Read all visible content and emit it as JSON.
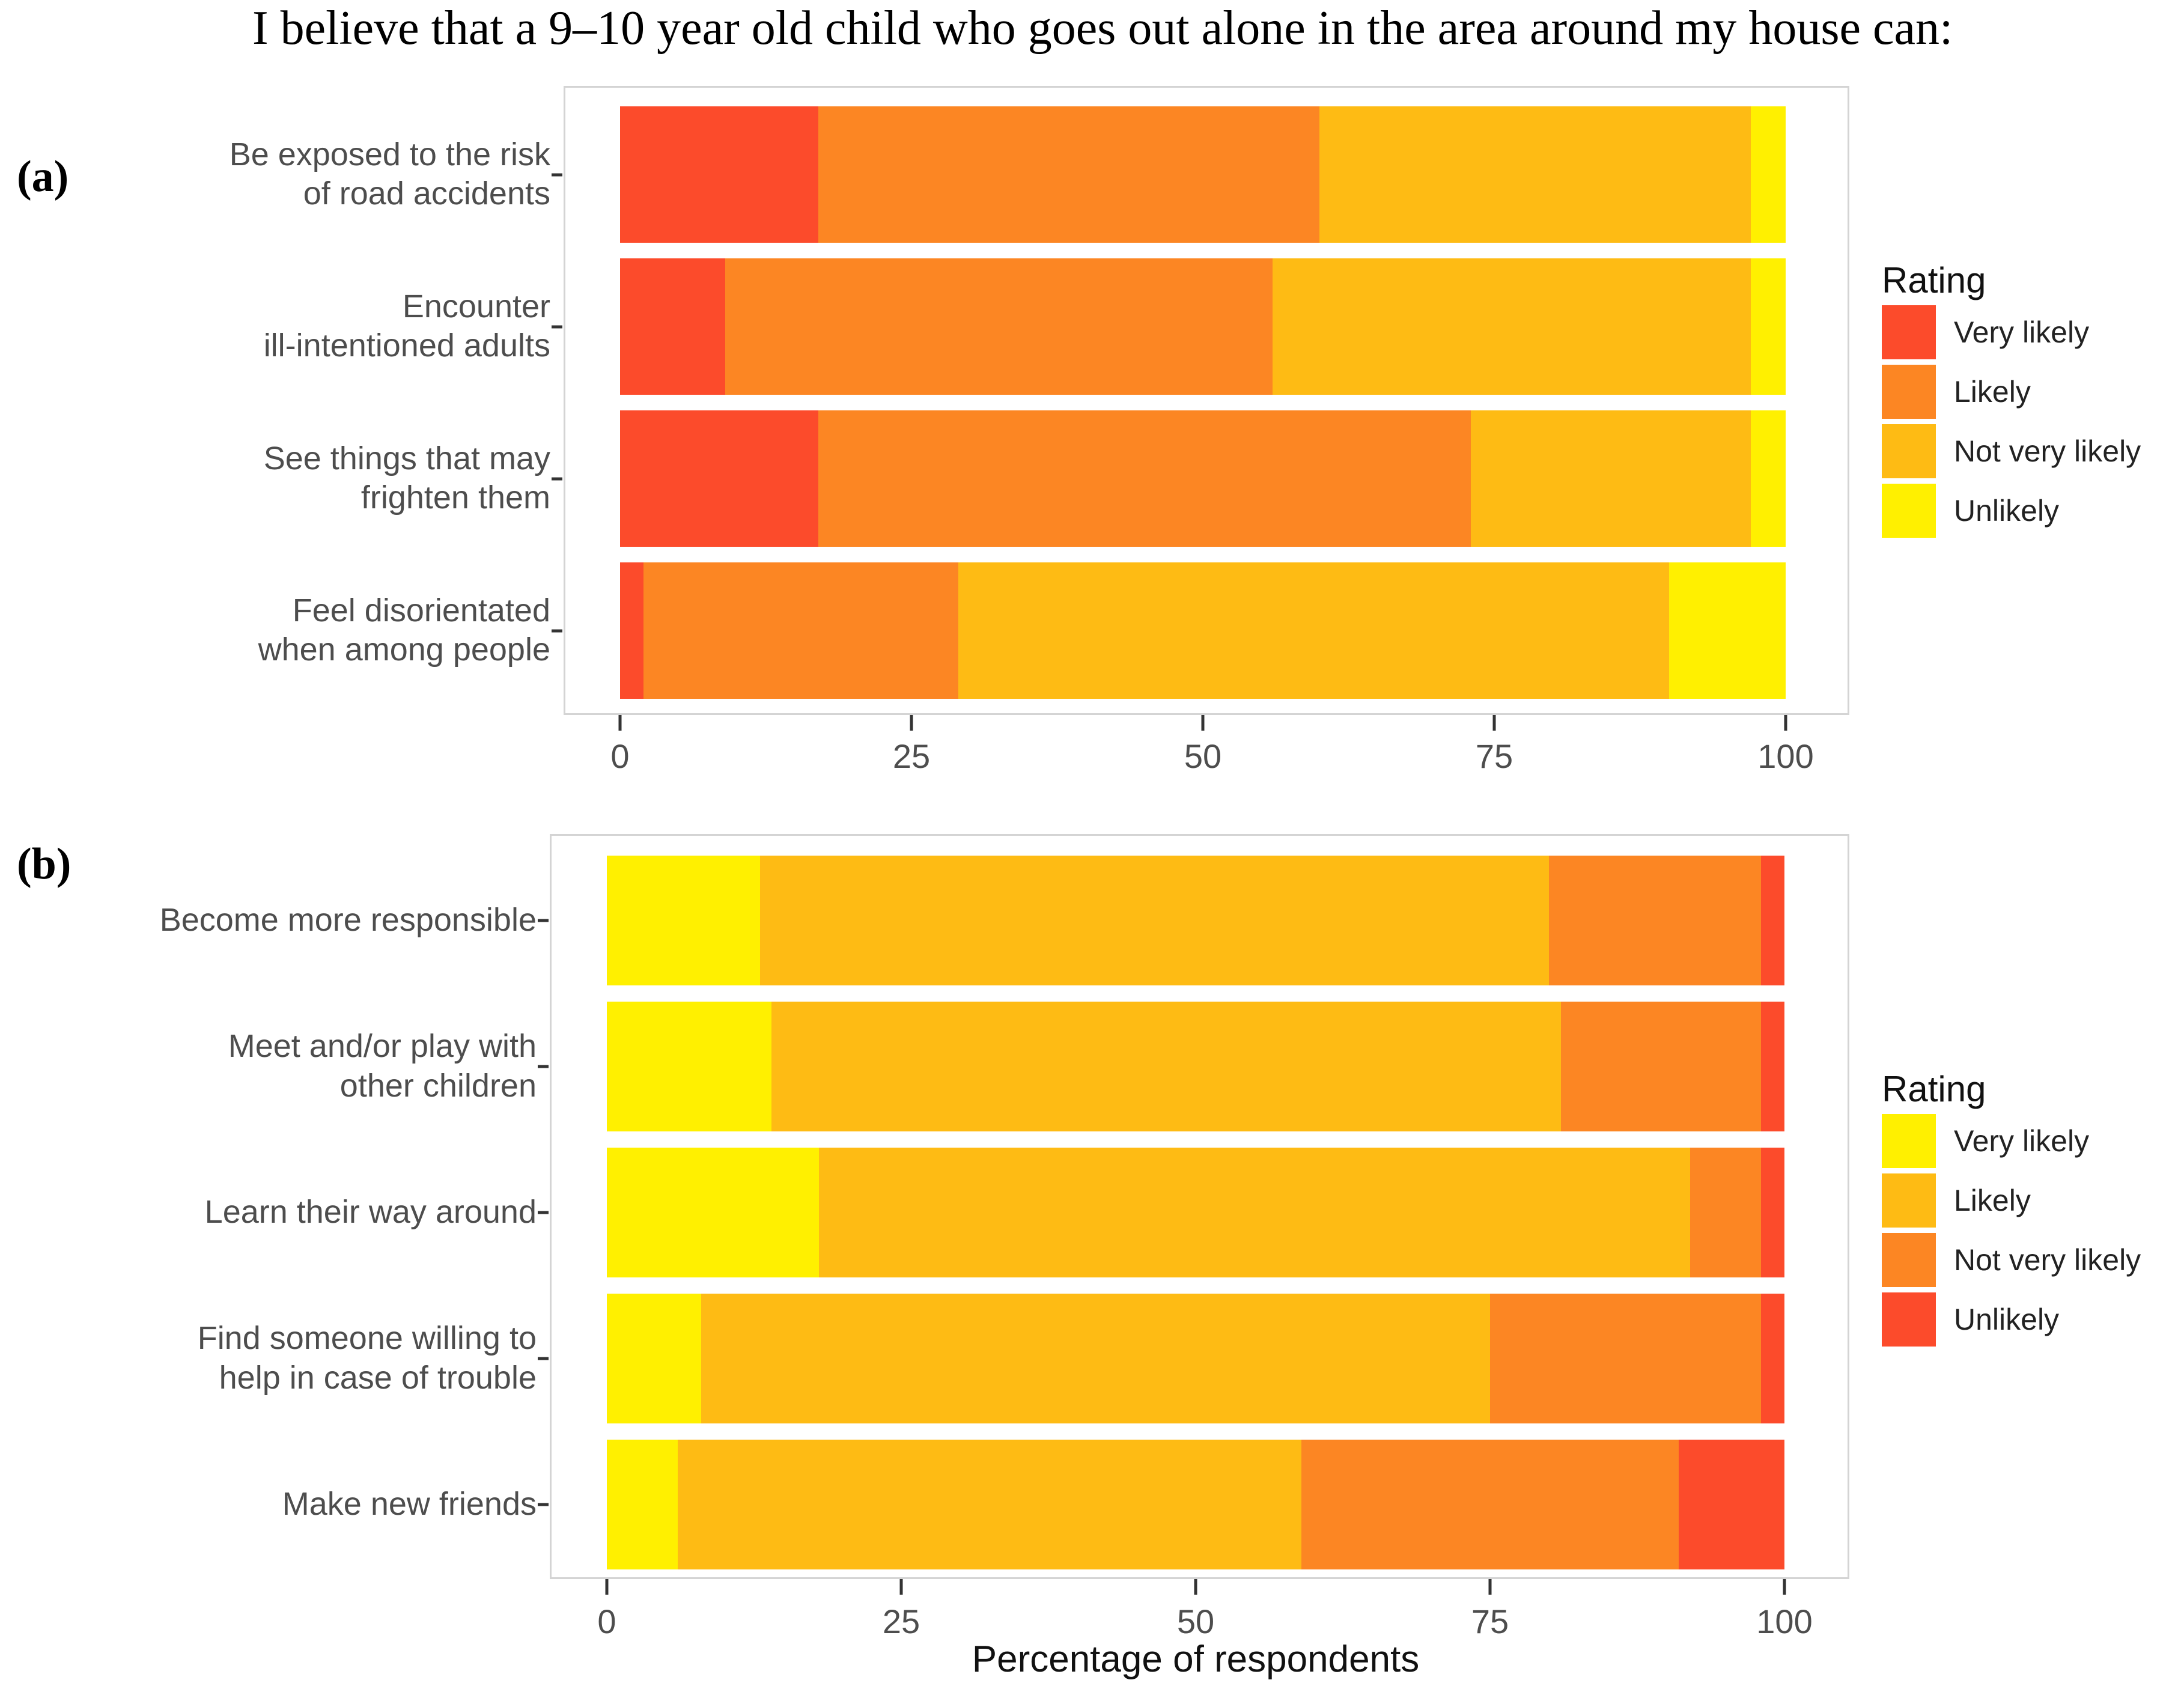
{
  "title": "I believe that a 9–10 year old child who goes out alone in the area around my house can:",
  "colors": {
    "very_likely_red": "#FC4B2B",
    "likely_orange": "#FC8623",
    "not_very_likely_amber": "#FEBB14",
    "unlikely_yellow": "#FFF000"
  },
  "chart_data": [
    {
      "type": "bar",
      "orientation": "horizontal",
      "stacked": true,
      "panel_label": "(a)",
      "legend_title": "Rating",
      "legend_position": "right",
      "xlabel": "",
      "xlim": [
        0,
        100
      ],
      "xticks": [
        0,
        25,
        50,
        75,
        100
      ],
      "grid": false,
      "categories": [
        "Be exposed to the risk\nof road accidents",
        "Encounter\nill-intentioned adults",
        "See things that may\nfrighten them",
        "Feel disorientated\nwhen among people"
      ],
      "series": [
        {
          "name": "Very likely",
          "color": "#FC4B2B",
          "values": [
            17,
            9,
            17,
            2
          ]
        },
        {
          "name": "Likely",
          "color": "#FC8623",
          "values": [
            43,
            47,
            56,
            27
          ]
        },
        {
          "name": "Not very likely",
          "color": "#FEBB14",
          "values": [
            37,
            41,
            24,
            61
          ]
        },
        {
          "name": "Unlikely",
          "color": "#FFF000",
          "values": [
            3,
            3,
            3,
            10
          ]
        }
      ]
    },
    {
      "type": "bar",
      "orientation": "horizontal",
      "stacked": true,
      "panel_label": "(b)",
      "legend_title": "Rating",
      "legend_position": "right",
      "xlabel": "Percentage of respondents",
      "xlim": [
        0,
        100
      ],
      "xticks": [
        0,
        25,
        50,
        75,
        100
      ],
      "grid": false,
      "categories": [
        "Become more responsible",
        "Meet and/or play with\nother children",
        "Learn their way around",
        "Find someone willing to\nhelp in case of trouble",
        "Make new friends"
      ],
      "series": [
        {
          "name": "Very likely",
          "color": "#FFF000",
          "values": [
            13,
            14,
            18,
            8,
            6
          ]
        },
        {
          "name": "Likely",
          "color": "#FEBB14",
          "values": [
            67,
            67,
            74,
            67,
            53
          ]
        },
        {
          "name": "Not very likely",
          "color": "#FC8623",
          "values": [
            18,
            17,
            6,
            23,
            32
          ]
        },
        {
          "name": "Unlikely",
          "color": "#FC4B2B",
          "values": [
            2,
            2,
            2,
            2,
            9
          ]
        }
      ]
    }
  ]
}
